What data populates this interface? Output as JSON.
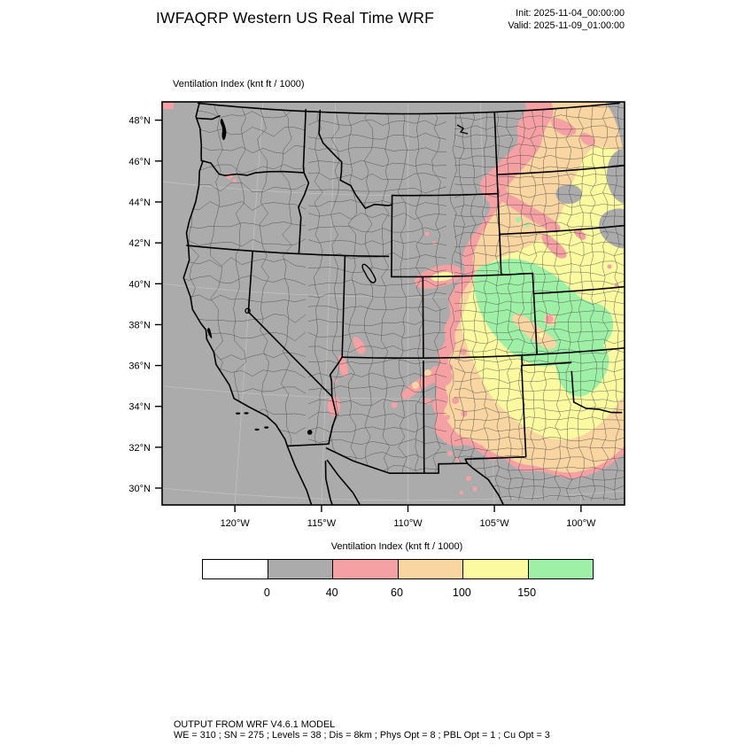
{
  "header": {
    "title": "IWFAQRP Western US Real Time WRF",
    "init": "Init: 2025-11-04_00:00:00",
    "valid": "Valid: 2025-11-09_01:00:00"
  },
  "map": {
    "subtitle": "Ventilation Index   (knt ft / 1000)",
    "lat_tick_labels": [
      "48°N",
      "46°N",
      "44°N",
      "42°N",
      "40°N",
      "38°N",
      "36°N",
      "34°N",
      "32°N",
      "30°N"
    ],
    "lat_tick_values": [
      48,
      46,
      44,
      42,
      40,
      38,
      36,
      34,
      32,
      30
    ],
    "lon_tick_labels": [
      "120°W",
      "115°W",
      "110°W",
      "105°W",
      "100°W"
    ],
    "lon_tick_values": [
      -120,
      -115,
      -110,
      -105,
      -100
    ],
    "colors": {
      "base_gray": "#ABABAB",
      "pink": "#F5A1A4",
      "orange": "#F8D5A1",
      "yellow": "#FBFAA0",
      "green": "#9FF0A7",
      "county_line": "#454545",
      "state_line": "#000000",
      "graticule": "#C9C9C9",
      "water": "#000000",
      "frame": "#000000"
    }
  },
  "legend": {
    "title": "Ventilation Index  (knt ft / 1000)",
    "tick_labels": [
      "0",
      "40",
      "60",
      "100",
      "150"
    ],
    "segment_colors": [
      "#FFFFFF",
      "#ABABAB",
      "#F5A1A4",
      "#F8D5A1",
      "#FBFAA0",
      "#9FF0A7"
    ]
  },
  "footer": {
    "line1": "OUTPUT FROM WRF V4.6.1 MODEL",
    "line2": "WE = 310 ; SN = 275 ; Levels = 38 ; Dis = 8km ; Phys Opt = 8 ; PBL Opt = 1 ; Cu Opt = 3"
  },
  "chart_data": {
    "type": "heatmap",
    "title": "Ventilation Index  (knt ft / 1000)",
    "variable": "Ventilation Index",
    "units": "knt ft / 1000",
    "levels": [
      0,
      40,
      60,
      100,
      150
    ],
    "level_colors": [
      "#FFFFFF",
      "#ABABAB",
      "#F5A1A4",
      "#F8D5A1",
      "#FBFAA0",
      "#9FF0A7"
    ],
    "x_ticks": [
      "120°W",
      "115°W",
      "110°W",
      "105°W",
      "100°W"
    ],
    "y_ticks": [
      "48°N",
      "46°N",
      "44°N",
      "42°N",
      "40°N",
      "38°N",
      "36°N",
      "34°N",
      "32°N",
      "30°N"
    ],
    "region": "Western US",
    "pattern_summary": "Values 0-40 (gray) over most of the West Coast, Great Basin and Rockies; a broad NW-SE band of 40-150+ (pink/orange/yellow) from eastern Montana and the Dakotas through Wyoming, Colorado, Nebraska and Kansas; maximum >150 (green) centered on eastern Colorado / western Kansas and the Oklahoma-Texas panhandle area; scattered 40-60 (pink) streaks in Utah, New Mexico and northwest Oregon."
  }
}
